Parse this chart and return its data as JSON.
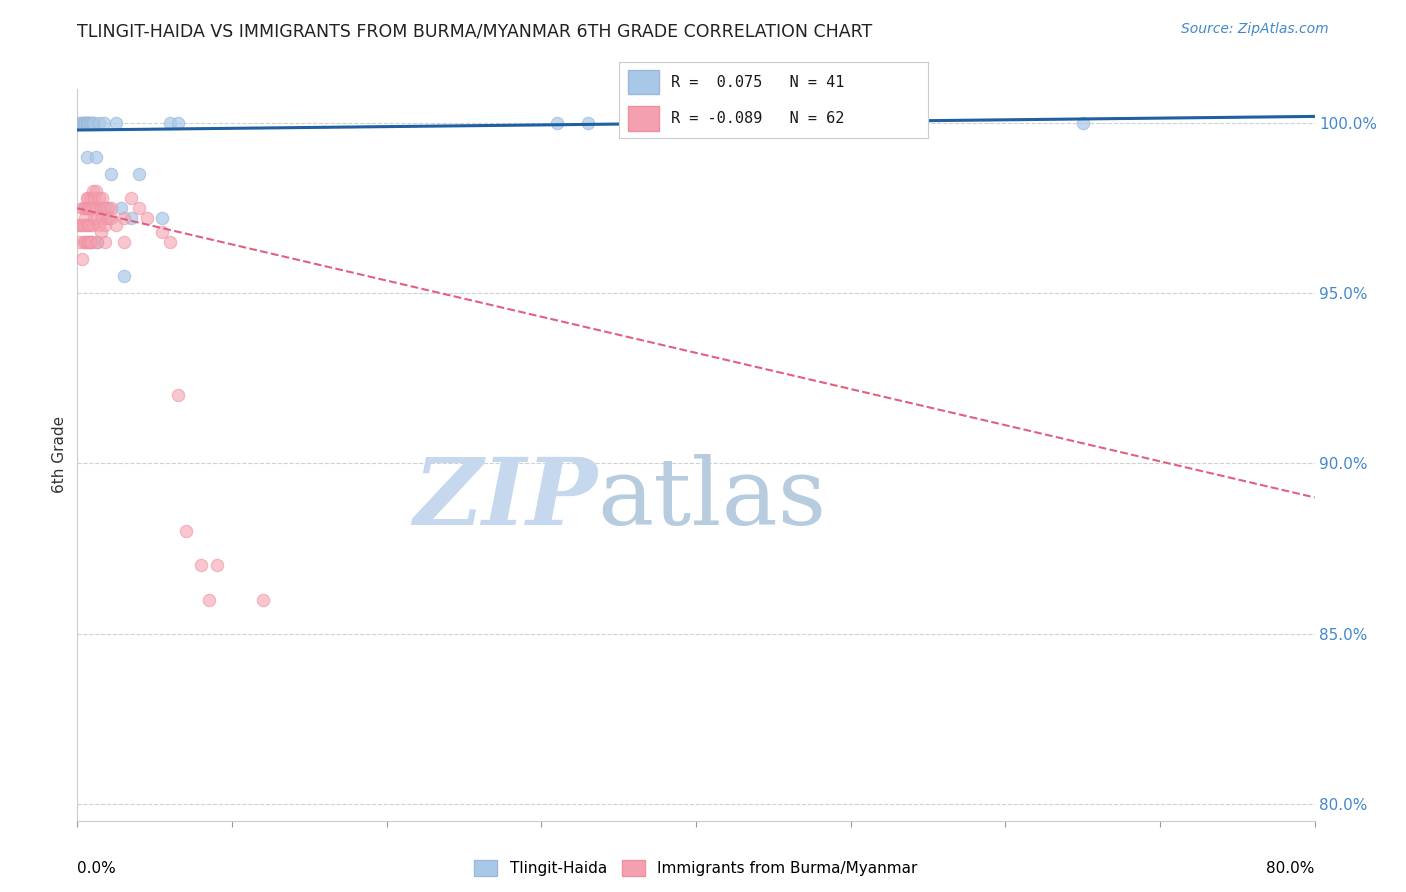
{
  "title": "TLINGIT-HAIDA VS IMMIGRANTS FROM BURMA/MYANMAR 6TH GRADE CORRELATION CHART",
  "source": "Source: ZipAtlas.com",
  "ylabel": "6th Grade",
  "right_yticks": [
    100.0,
    95.0,
    90.0,
    85.0,
    80.0
  ],
  "legend_blue_label": "Tlingit-Haida",
  "legend_pink_label": "Immigrants from Burma/Myanmar",
  "blue_R": "0.075",
  "blue_N": "41",
  "pink_R": "-0.089",
  "pink_N": "62",
  "blue_color": "#a8c8e8",
  "pink_color": "#f4a0b0",
  "blue_edge_color": "#a0b8d8",
  "pink_edge_color": "#f090a0",
  "blue_line_color": "#2060a0",
  "pink_line_color": "#e06080",
  "watermark_zip_color": "#c5d8ee",
  "watermark_atlas_color": "#b8cce0",
  "blue_scatter_x": [
    0.2,
    0.3,
    0.3,
    0.4,
    0.4,
    0.5,
    0.5,
    0.6,
    0.6,
    0.6,
    0.7,
    0.7,
    0.7,
    0.8,
    0.8,
    0.9,
    0.9,
    0.9,
    1.0,
    1.0,
    1.2,
    1.2,
    1.3,
    1.4,
    1.4,
    1.6,
    1.7,
    1.8,
    2.0,
    2.2,
    2.5,
    2.8,
    3.0,
    3.5,
    4.0,
    5.5,
    6.0,
    6.5,
    31.0,
    33.0,
    65.0
  ],
  "blue_scatter_y": [
    100.0,
    100.0,
    100.0,
    100.0,
    100.0,
    100.0,
    100.0,
    100.0,
    100.0,
    99.0,
    100.0,
    100.0,
    97.5,
    100.0,
    97.5,
    100.0,
    97.5,
    96.5,
    100.0,
    100.0,
    99.0,
    97.5,
    96.5,
    100.0,
    97.5,
    97.5,
    100.0,
    97.2,
    97.5,
    98.5,
    100.0,
    97.5,
    95.5,
    97.2,
    98.5,
    97.2,
    100.0,
    100.0,
    100.0,
    100.0,
    100.0
  ],
  "pink_scatter_x": [
    0.1,
    0.2,
    0.2,
    0.3,
    0.3,
    0.3,
    0.4,
    0.4,
    0.4,
    0.5,
    0.5,
    0.5,
    0.6,
    0.6,
    0.6,
    0.6,
    0.7,
    0.7,
    0.7,
    0.7,
    0.8,
    0.8,
    0.8,
    0.9,
    0.9,
    0.9,
    1.0,
    1.0,
    1.0,
    1.1,
    1.1,
    1.2,
    1.2,
    1.3,
    1.3,
    1.4,
    1.4,
    1.5,
    1.5,
    1.6,
    1.6,
    1.7,
    1.8,
    1.8,
    1.9,
    2.0,
    2.2,
    2.2,
    2.5,
    3.0,
    3.0,
    3.5,
    4.0,
    4.5,
    5.5,
    6.0,
    6.5,
    7.0,
    8.0,
    8.5,
    9.0,
    12.0
  ],
  "pink_scatter_y": [
    97.0,
    97.0,
    96.5,
    97.5,
    97.0,
    96.0,
    97.5,
    97.0,
    96.5,
    97.5,
    97.2,
    96.5,
    97.8,
    97.5,
    97.0,
    96.5,
    97.8,
    97.5,
    97.0,
    96.5,
    97.5,
    97.0,
    96.5,
    97.8,
    97.5,
    96.5,
    98.0,
    97.5,
    97.0,
    97.8,
    97.2,
    98.0,
    97.5,
    97.2,
    96.5,
    97.8,
    97.0,
    97.5,
    96.8,
    97.8,
    97.2,
    97.5,
    97.0,
    96.5,
    97.5,
    97.2,
    97.5,
    97.2,
    97.0,
    97.2,
    96.5,
    97.8,
    97.5,
    97.2,
    96.8,
    96.5,
    92.0,
    88.0,
    87.0,
    86.0,
    87.0,
    86.0
  ],
  "xlim": [
    0.0,
    80.0
  ],
  "ylim": [
    79.5,
    101.0
  ],
  "blue_trend_x": [
    0.0,
    80.0
  ],
  "blue_trend_y": [
    99.8,
    100.2
  ],
  "pink_trend_x": [
    0.0,
    80.0
  ],
  "pink_trend_y": [
    97.5,
    89.0
  ],
  "xtick_positions": [
    0,
    10,
    20,
    30,
    40,
    50,
    60,
    70,
    80
  ],
  "marker_size": 80
}
